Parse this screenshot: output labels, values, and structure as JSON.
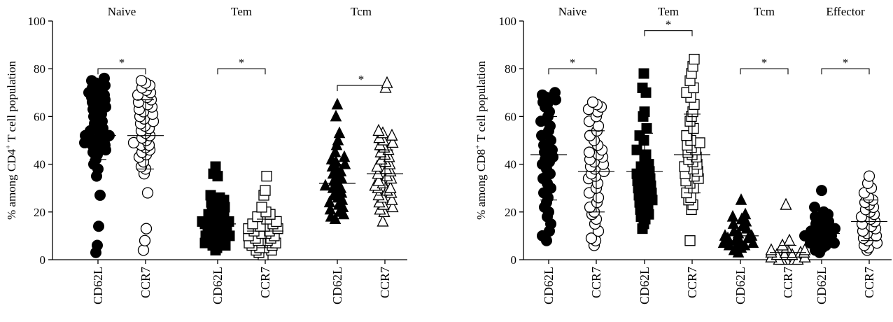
{
  "chart_data": [
    {
      "type": "scatter",
      "title": "",
      "ylabel": "% among CD4+ T cell population",
      "ylabel_parts": {
        "prefix": "% among CD4",
        "sup": "+",
        "suffix": " T cell population"
      },
      "ylim": [
        0,
        100
      ],
      "yticks": [
        0,
        20,
        40,
        60,
        80,
        100
      ],
      "grid": false,
      "groups": [
        {
          "name": "Naive",
          "star": "*",
          "sig": [
            0,
            1
          ]
        },
        {
          "name": "Tem",
          "star": "*",
          "sig": [
            0,
            1
          ]
        },
        {
          "name": "Tcm",
          "star": "*",
          "sig": [
            0,
            1
          ]
        }
      ],
      "categories": [
        "CD62L",
        "CCR7",
        "CD62L",
        "CCR7",
        "CD62L",
        "CCR7"
      ],
      "series": [
        {
          "group": 0,
          "category": "CD62L",
          "marker": "circle-filled",
          "mean": 52,
          "sd": [
            42,
            63
          ],
          "values": [
            3,
            6,
            14,
            27,
            35,
            38,
            40,
            42,
            44,
            45,
            46,
            47,
            48,
            48,
            49,
            50,
            50,
            51,
            52,
            52,
            53,
            54,
            55,
            56,
            57,
            58,
            59,
            60,
            61,
            62,
            63,
            64,
            65,
            66,
            67,
            68,
            68,
            69,
            70,
            71,
            72,
            73,
            74,
            75,
            76
          ]
        },
        {
          "group": 0,
          "category": "CCR7",
          "marker": "circle-open",
          "mean": 52,
          "sd": [
            38,
            67
          ],
          "values": [
            4,
            8,
            13,
            28,
            36,
            38,
            39,
            41,
            43,
            44,
            45,
            46,
            47,
            48,
            48,
            49,
            50,
            51,
            52,
            53,
            54,
            55,
            56,
            57,
            58,
            59,
            60,
            61,
            62,
            63,
            64,
            65,
            66,
            67,
            68,
            69,
            70,
            71,
            72,
            73,
            74,
            75
          ]
        },
        {
          "group": 1,
          "category": "CD62L",
          "marker": "square-filled",
          "mean": 15,
          "sd": [
            8,
            24
          ],
          "values": [
            4,
            5,
            6,
            6,
            7,
            8,
            8,
            9,
            10,
            10,
            11,
            12,
            12,
            13,
            13,
            14,
            14,
            15,
            15,
            16,
            16,
            17,
            18,
            18,
            19,
            20,
            21,
            22,
            23,
            24,
            25,
            26,
            27,
            35,
            36,
            39
          ]
        },
        {
          "group": 1,
          "category": "CCR7",
          "marker": "square-open",
          "mean": 12,
          "sd": [
            5,
            17
          ],
          "values": [
            2,
            3,
            4,
            4,
            5,
            5,
            6,
            6,
            7,
            7,
            8,
            8,
            9,
            9,
            10,
            10,
            11,
            11,
            12,
            12,
            13,
            13,
            14,
            14,
            15,
            15,
            16,
            17,
            18,
            19,
            20,
            22,
            27,
            29,
            35
          ]
        },
        {
          "group": 2,
          "category": "CD62L",
          "marker": "triangle-filled",
          "mean": 32,
          "sd": [
            25,
            40
          ],
          "values": [
            17,
            18,
            19,
            20,
            21,
            22,
            23,
            24,
            25,
            26,
            27,
            28,
            29,
            30,
            30,
            31,
            32,
            33,
            34,
            35,
            36,
            37,
            38,
            39,
            40,
            41,
            42,
            43,
            45,
            48,
            50,
            53,
            60,
            65
          ]
        },
        {
          "group": 2,
          "category": "CCR7",
          "marker": "triangle-open",
          "mean": 36,
          "sd": [
            27,
            46
          ],
          "values": [
            16,
            20,
            21,
            22,
            23,
            24,
            25,
            26,
            27,
            28,
            29,
            30,
            30,
            31,
            32,
            33,
            34,
            35,
            36,
            37,
            38,
            39,
            40,
            41,
            42,
            43,
            44,
            45,
            46,
            47,
            48,
            49,
            50,
            51,
            52,
            53,
            54,
            72,
            74
          ]
        }
      ]
    },
    {
      "type": "scatter",
      "title": "",
      "ylabel": "% among CD8+ T cell population",
      "ylabel_parts": {
        "prefix": "% among CD8",
        "sup": "+",
        "suffix": " T cell population"
      },
      "ylim": [
        0,
        100
      ],
      "yticks": [
        0,
        20,
        40,
        60,
        80,
        100
      ],
      "grid": false,
      "groups": [
        {
          "name": "Naive",
          "star": "*",
          "sig": [
            0,
            1
          ]
        },
        {
          "name": "Tem",
          "star": "*",
          "sig": [
            0,
            1
          ]
        },
        {
          "name": "Tcm",
          "star": "*",
          "sig": [
            0,
            1
          ]
        },
        {
          "name": "Effector",
          "star": "*",
          "sig": [
            0,
            1
          ]
        }
      ],
      "categories": [
        "CD62L",
        "CCR7",
        "CD62L",
        "CCR7",
        "CD62L",
        "CCR7",
        "CD62L",
        "CCR7"
      ],
      "series": [
        {
          "group": 0,
          "category": "CD62L",
          "marker": "circle-filled",
          "mean": 44,
          "sd": [
            25,
            60
          ],
          "values": [
            8,
            10,
            12,
            15,
            18,
            20,
            22,
            24,
            26,
            28,
            30,
            32,
            34,
            36,
            38,
            40,
            41,
            42,
            43,
            44,
            45,
            46,
            47,
            48,
            50,
            52,
            54,
            56,
            58,
            60,
            62,
            64,
            65,
            66,
            67,
            68,
            69,
            70
          ]
        },
        {
          "group": 0,
          "category": "CCR7",
          "marker": "circle-open",
          "mean": 37,
          "sd": [
            20,
            54
          ],
          "values": [
            6,
            8,
            9,
            12,
            15,
            17,
            19,
            20,
            22,
            24,
            26,
            28,
            30,
            32,
            34,
            35,
            36,
            37,
            38,
            39,
            40,
            41,
            42,
            43,
            44,
            45,
            46,
            48,
            50,
            52,
            54,
            56,
            58,
            60,
            62,
            63,
            64,
            65,
            66
          ]
        },
        {
          "group": 1,
          "category": "CD62L",
          "marker": "square-filled",
          "mean": 37,
          "sd": [
            22,
            53
          ],
          "values": [
            13,
            15,
            17,
            18,
            19,
            20,
            21,
            22,
            23,
            24,
            25,
            26,
            27,
            28,
            29,
            30,
            31,
            32,
            33,
            34,
            35,
            36,
            37,
            38,
            39,
            40,
            42,
            44,
            46,
            50,
            52,
            55,
            60,
            62,
            70,
            72,
            78
          ]
        },
        {
          "group": 1,
          "category": "CCR7",
          "marker": "square-open",
          "mean": 44,
          "sd": [
            28,
            61
          ],
          "values": [
            8,
            21,
            23,
            25,
            26,
            28,
            30,
            32,
            33,
            34,
            35,
            36,
            37,
            38,
            39,
            40,
            41,
            42,
            43,
            44,
            45,
            46,
            47,
            48,
            49,
            50,
            52,
            55,
            58,
            60,
            62,
            65,
            68,
            70,
            72,
            75,
            78,
            81,
            84
          ]
        },
        {
          "group": 2,
          "category": "CD62L",
          "marker": "triangle-filled",
          "mean": 10,
          "sd": [
            5,
            15
          ],
          "values": [
            3,
            4,
            5,
            5,
            6,
            6,
            7,
            7,
            8,
            8,
            9,
            9,
            10,
            10,
            11,
            12,
            13,
            14,
            15,
            16,
            17,
            18,
            19,
            25
          ]
        },
        {
          "group": 2,
          "category": "CCR7",
          "marker": "triangle-open",
          "mean": 3,
          "sd": [
            1,
            6
          ],
          "values": [
            0,
            0,
            0,
            0,
            0,
            1,
            1,
            1,
            1,
            2,
            2,
            2,
            2,
            3,
            3,
            3,
            4,
            4,
            5,
            6,
            8,
            23
          ]
        },
        {
          "group": 3,
          "category": "CD62L",
          "marker": "circle-filled",
          "mean": 11,
          "sd": [
            5,
            17
          ],
          "values": [
            3,
            4,
            5,
            6,
            6,
            7,
            7,
            8,
            8,
            9,
            9,
            10,
            10,
            11,
            11,
            12,
            12,
            13,
            14,
            15,
            16,
            17,
            18,
            19,
            20,
            22,
            29
          ]
        },
        {
          "group": 3,
          "category": "CCR7",
          "marker": "circle-open",
          "mean": 16,
          "sd": [
            8,
            25
          ],
          "values": [
            4,
            5,
            6,
            7,
            8,
            9,
            10,
            11,
            12,
            13,
            14,
            15,
            16,
            17,
            18,
            19,
            20,
            21,
            22,
            23,
            24,
            25,
            26,
            28,
            30,
            32,
            35
          ]
        }
      ]
    }
  ]
}
